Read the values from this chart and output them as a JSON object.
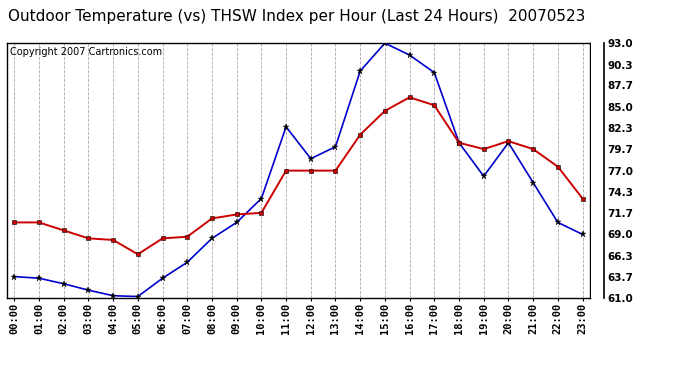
{
  "title": "Outdoor Temperature (vs) THSW Index per Hour (Last 24 Hours)  20070523",
  "copyright": "Copyright 2007 Cartronics.com",
  "hours": [
    "00:00",
    "01:00",
    "02:00",
    "03:00",
    "04:00",
    "05:00",
    "06:00",
    "07:00",
    "08:00",
    "09:00",
    "10:00",
    "11:00",
    "12:00",
    "13:00",
    "14:00",
    "15:00",
    "16:00",
    "17:00",
    "18:00",
    "19:00",
    "20:00",
    "21:00",
    "22:00",
    "23:00"
  ],
  "blue_data": [
    63.7,
    63.5,
    62.8,
    62.0,
    61.3,
    61.2,
    63.5,
    65.5,
    68.5,
    70.5,
    73.5,
    82.5,
    78.5,
    80.0,
    89.5,
    93.0,
    91.5,
    89.3,
    80.5,
    76.3,
    80.5,
    75.5,
    70.5,
    69.0
  ],
  "red_data": [
    70.5,
    70.5,
    69.5,
    68.5,
    68.3,
    66.5,
    68.5,
    68.7,
    71.0,
    71.5,
    71.7,
    77.0,
    77.0,
    77.0,
    81.5,
    84.5,
    86.2,
    85.2,
    80.5,
    79.7,
    80.7,
    79.7,
    77.5,
    73.5
  ],
  "ylim": [
    61.0,
    93.0
  ],
  "yticks": [
    61.0,
    63.7,
    66.3,
    69.0,
    71.7,
    74.3,
    77.0,
    79.7,
    82.3,
    85.0,
    87.7,
    90.3,
    93.0
  ],
  "blue_color": "#0000cc",
  "red_color": "#cc0000",
  "bg_color": "#ffffff",
  "plot_bg_color": "#ffffff",
  "grid_color": "#aaaaaa",
  "title_fontsize": 11,
  "tick_fontsize": 7.5,
  "copyright_fontsize": 7
}
